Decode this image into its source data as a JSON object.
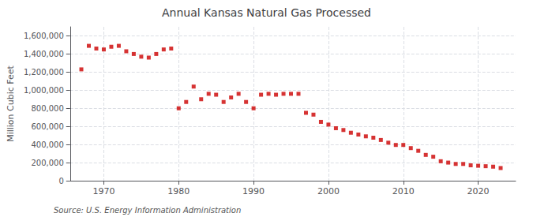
{
  "chart_data": {
    "type": "scatter",
    "title": "Annual Kansas Natural Gas Processed",
    "ylabel": "Million Cubic Feet",
    "annotation": "Source: U.S. Energy Information Administration",
    "x": [
      1967,
      1968,
      1969,
      1970,
      1971,
      1972,
      1973,
      1974,
      1975,
      1976,
      1977,
      1978,
      1979,
      1980,
      1981,
      1982,
      1983,
      1984,
      1985,
      1986,
      1987,
      1988,
      1989,
      1990,
      1991,
      1992,
      1993,
      1994,
      1995,
      1996,
      1997,
      1998,
      1999,
      2000,
      2001,
      2002,
      2003,
      2004,
      2005,
      2006,
      2007,
      2008,
      2009,
      2010,
      2011,
      2012,
      2013,
      2014,
      2015,
      2016,
      2017,
      2018,
      2019,
      2020,
      2021,
      2022,
      2023
    ],
    "values": [
      1230000,
      1490000,
      1460000,
      1450000,
      1480000,
      1490000,
      1430000,
      1400000,
      1370000,
      1360000,
      1400000,
      1450000,
      1460000,
      800000,
      870000,
      1040000,
      900000,
      960000,
      950000,
      870000,
      920000,
      960000,
      870000,
      800000,
      950000,
      960000,
      950000,
      960000,
      960000,
      960000,
      750000,
      730000,
      650000,
      620000,
      580000,
      560000,
      530000,
      510000,
      490000,
      475000,
      450000,
      420000,
      395000,
      395000,
      360000,
      330000,
      285000,
      265000,
      215000,
      200000,
      185000,
      185000,
      170000,
      165000,
      160000,
      155000,
      140000
    ],
    "color": "#cc0000",
    "marker": "square",
    "xlim": [
      1965.5,
      2025
    ],
    "xticks": [
      1970,
      1980,
      1990,
      2000,
      2010,
      2020
    ],
    "ylim": [
      0,
      1700000
    ],
    "yticks": [
      0,
      {
        "value": 200000,
        "label": "200,000"
      },
      {
        "value": 400000,
        "label": "400,000"
      },
      {
        "value": 600000,
        "label": "600,000"
      },
      {
        "value": 800000,
        "label": "800,000"
      },
      {
        "value": 1000000,
        "label": "1,000,000"
      },
      {
        "value": 1200000,
        "label": "1,200,000"
      },
      {
        "value": 1400000,
        "label": "1,400,000"
      },
      {
        "value": 1600000,
        "label": "1,600,000"
      }
    ],
    "grid": true
  }
}
